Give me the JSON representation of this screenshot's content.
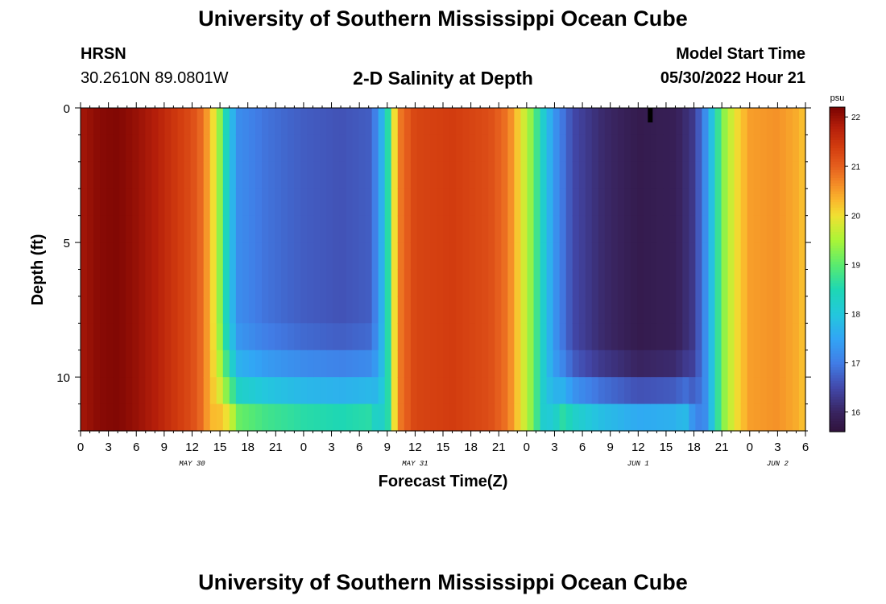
{
  "header": {
    "title": "University of Southern Mississippi Ocean Cube",
    "station": "HRSN",
    "coords": "30.2610N  89.0801W",
    "subtitle": "2-D Salinity at Depth",
    "model_label": "Model Start Time",
    "model_time": "05/30/2022 Hour 21"
  },
  "footer": {
    "title": "University of Southern Mississippi Ocean Cube"
  },
  "chart_data": {
    "type": "heatmap",
    "xlabel": "Forecast Time(Z)",
    "ylabel": "Depth (ft)",
    "x_range_hours": [
      0,
      78
    ],
    "y_range_ft": [
      0,
      12
    ],
    "x_ticks": [
      {
        "h": 0,
        "label": "0"
      },
      {
        "h": 3,
        "label": "3"
      },
      {
        "h": 6,
        "label": "6"
      },
      {
        "h": 9,
        "label": "9"
      },
      {
        "h": 12,
        "label": "12"
      },
      {
        "h": 15,
        "label": "15"
      },
      {
        "h": 18,
        "label": "18"
      },
      {
        "h": 21,
        "label": "21"
      },
      {
        "h": 24,
        "label": "0"
      },
      {
        "h": 27,
        "label": "3"
      },
      {
        "h": 30,
        "label": "6"
      },
      {
        "h": 33,
        "label": "9"
      },
      {
        "h": 36,
        "label": "12"
      },
      {
        "h": 39,
        "label": "15"
      },
      {
        "h": 42,
        "label": "18"
      },
      {
        "h": 45,
        "label": "21"
      },
      {
        "h": 48,
        "label": "0"
      },
      {
        "h": 51,
        "label": "3"
      },
      {
        "h": 54,
        "label": "6"
      },
      {
        "h": 57,
        "label": "9"
      },
      {
        "h": 60,
        "label": "12"
      },
      {
        "h": 63,
        "label": "15"
      },
      {
        "h": 66,
        "label": "18"
      },
      {
        "h": 69,
        "label": "21"
      },
      {
        "h": 72,
        "label": "0"
      },
      {
        "h": 75,
        "label": "3"
      },
      {
        "h": 78,
        "label": "6"
      }
    ],
    "date_labels": [
      {
        "h": 12,
        "label": "MAY 30"
      },
      {
        "h": 36,
        "label": "MAY 31"
      },
      {
        "h": 60,
        "label": "JUN 1"
      },
      {
        "h": 75,
        "label": "JUN 2"
      }
    ],
    "y_ticks": [
      0,
      5,
      10
    ],
    "colorbar": {
      "unit": "psu",
      "range": [
        15.6,
        22.2
      ],
      "ticks": [
        16,
        17,
        18,
        19,
        20,
        21,
        22
      ]
    },
    "marker_hour": 61.3,
    "surface_salinity_by_hour": [
      {
        "h": 0,
        "v": 21.9
      },
      {
        "h": 2,
        "v": 22.1
      },
      {
        "h": 4,
        "v": 22.15
      },
      {
        "h": 6,
        "v": 22.0
      },
      {
        "h": 8,
        "v": 21.8
      },
      {
        "h": 10,
        "v": 21.5
      },
      {
        "h": 12,
        "v": 21.2
      },
      {
        "h": 13,
        "v": 20.9
      },
      {
        "h": 14,
        "v": 20.3
      },
      {
        "h": 15,
        "v": 19.3
      },
      {
        "h": 16,
        "v": 18.0
      },
      {
        "h": 17,
        "v": 17.2
      },
      {
        "h": 20,
        "v": 16.9
      },
      {
        "h": 24,
        "v": 16.7
      },
      {
        "h": 28,
        "v": 16.6
      },
      {
        "h": 31,
        "v": 16.7
      },
      {
        "h": 32,
        "v": 17.2
      },
      {
        "h": 33,
        "v": 18.4
      },
      {
        "h": 33.6,
        "v": 19.8
      },
      {
        "h": 34.4,
        "v": 20.8
      },
      {
        "h": 36,
        "v": 21.3
      },
      {
        "h": 40,
        "v": 21.4
      },
      {
        "h": 44,
        "v": 21.2
      },
      {
        "h": 46,
        "v": 20.8
      },
      {
        "h": 47,
        "v": 20.2
      },
      {
        "h": 48.5,
        "v": 19.3
      },
      {
        "h": 50,
        "v": 18.0
      },
      {
        "h": 51,
        "v": 17.3
      },
      {
        "h": 53,
        "v": 16.5
      },
      {
        "h": 56,
        "v": 16.1
      },
      {
        "h": 60,
        "v": 15.8
      },
      {
        "h": 64,
        "v": 15.9
      },
      {
        "h": 66,
        "v": 16.3
      },
      {
        "h": 67,
        "v": 17.0
      },
      {
        "h": 68,
        "v": 18.0
      },
      {
        "h": 69,
        "v": 19.2
      },
      {
        "h": 70.5,
        "v": 20.0
      },
      {
        "h": 72,
        "v": 20.5
      },
      {
        "h": 75,
        "v": 20.6
      },
      {
        "h": 77,
        "v": 20.4
      },
      {
        "h": 78,
        "v": 20.2
      }
    ],
    "bottom_intrusions": [
      {
        "h_start": 14,
        "h_end": 33,
        "min_depth_ft": 7.5
      },
      {
        "h_start": 50,
        "h_end": 67,
        "min_depth_ft": 8.5
      }
    ]
  }
}
